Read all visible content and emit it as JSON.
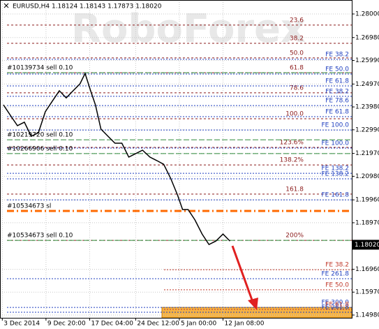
{
  "chart_data": {
    "type": "line",
    "title": "EURUSD,H4  1.18124 1.18143 1.17873 1.18020",
    "watermark": "RoboForex",
    "current_price": {
      "value": 1.1802,
      "label": "1.18020"
    },
    "xlim": [
      0,
      153
    ],
    "xticks": [
      {
        "value": 1,
        "label": "3 Dec 2014"
      },
      {
        "value": 20,
        "label": "9 Dec 20:00"
      },
      {
        "value": 39,
        "label": "17 Dec 04:00"
      },
      {
        "value": 59,
        "label": "24 Dec 12:00"
      },
      {
        "value": 78,
        "label": "5 Jan 00:00"
      },
      {
        "value": 97,
        "label": "12 Jan 08:00"
      }
    ],
    "ylim": [
      1.14859,
      1.28604
    ],
    "yticks": [
      {
        "value": 1.28,
        "label": "1.28000"
      },
      {
        "value": 1.2698,
        "label": "1.26980"
      },
      {
        "value": 1.2599,
        "label": "1.25990"
      },
      {
        "value": 1.2497,
        "label": "1.24970"
      },
      {
        "value": 1.2398,
        "label": "1.23980"
      },
      {
        "value": 1.2299,
        "label": "1.22990"
      },
      {
        "value": 1.2197,
        "label": "1.21970"
      },
      {
        "value": 1.2098,
        "label": "1.20980"
      },
      {
        "value": 1.1996,
        "label": "1.19960"
      },
      {
        "value": 1.1897,
        "label": "1.18970"
      },
      {
        "value": 1.1696,
        "label": "1.16960"
      },
      {
        "value": 1.1597,
        "label": "1.15970"
      },
      {
        "value": 1.1498,
        "label": "1.14980"
      }
    ],
    "grid": true,
    "series": [
      {
        "name": "EURUSD",
        "color": "#000000",
        "x": [
          1.5,
          4.5,
          7.6,
          10.6,
          13.6,
          16.7,
          19.7,
          22.7,
          25.8,
          28.8,
          31.8,
          34.8,
          37,
          39.4,
          41.5,
          43.9,
          47,
          50,
          53,
          56,
          59,
          62,
          65.2,
          68.2,
          71.2,
          74.2,
          77.3,
          79.4,
          81.8,
          84.8,
          87.9,
          90.9,
          93.9,
          97,
          100
        ],
        "values": [
          1.2407,
          1.2362,
          1.2317,
          1.2332,
          1.2271,
          1.2286,
          1.2377,
          1.2422,
          1.2468,
          1.2437,
          1.2468,
          1.2498,
          1.2543,
          1.2468,
          1.2407,
          1.2302,
          1.2271,
          1.2241,
          1.2241,
          1.2181,
          1.2196,
          1.2211,
          1.2181,
          1.2166,
          1.215,
          1.209,
          1.2015,
          1.1954,
          1.1954,
          1.1909,
          1.1848,
          1.1803,
          1.1818,
          1.1848,
          1.1818
        ]
      }
    ],
    "fibo_levels": {
      "color": "#8b1a1a",
      "levels": [
        {
          "label": "23.6",
          "value": 1.2752
        },
        {
          "label": "38.2",
          "value": 1.2673
        },
        {
          "label": "50.0",
          "value": 1.261
        },
        {
          "label": "61.8",
          "value": 1.2546
        },
        {
          "label": "78.6",
          "value": 1.2459
        },
        {
          "label": "100.0",
          "value": 1.2347
        },
        {
          "label": "123.6%",
          "value": 1.2223
        },
        {
          "label": "138.2%",
          "value": 1.2147
        },
        {
          "label": "161.8",
          "value": 1.2021
        },
        {
          "label": "200%",
          "value": 1.1821
        }
      ]
    },
    "fe_levels": {
      "color": "#1f3fbf",
      "levels": [
        {
          "label": "FE 38.2",
          "value": 1.2604
        },
        {
          "label": "FE 50.0",
          "value": 1.254
        },
        {
          "label": "FE 61.8",
          "value": 1.2489
        },
        {
          "label": "FE 38.2",
          "value": 1.2444
        },
        {
          "label": "FE 78.6",
          "value": 1.2404
        },
        {
          "label": "FE 61.8",
          "value": 1.2356
        },
        {
          "label": "FE 100.0",
          "value": 1.2298
        },
        {
          "label": "FE 100.0",
          "value": 1.222
        },
        {
          "label": "FE 138.2",
          "value": 1.2111
        },
        {
          "label": "FE 138.2",
          "value": 1.2087
        },
        {
          "label": "FE 161.8",
          "value": 1.1996
        },
        {
          "label": "FE 261.8",
          "value": 1.1655
        },
        {
          "label": "FE 300.0",
          "value": 1.1531
        },
        {
          "label": "FE 261.8",
          "value": 1.151
        }
      ]
    },
    "fe_target_levels": {
      "color": "#c0392b",
      "levels": [
        {
          "label": "FE 38.2",
          "value": 1.1694
        },
        {
          "label": "FE 50.0",
          "value": 1.1607
        },
        {
          "label": "FE 61.8",
          "value": 1.1522
        }
      ]
    },
    "orders": {
      "color": "#2e8b3a",
      "levels": [
        {
          "label": "#10139734 sell 0.10",
          "value": 1.2546
        },
        {
          "label": "#10219720 sell 0.10",
          "value": 1.2256
        },
        {
          "label": "#10266906 sell 0.10",
          "value": 1.2196
        },
        {
          "label": "#10534673 sl",
          "value": 1.1948
        },
        {
          "label": "#10534673 sell 0.10",
          "value": 1.1821
        }
      ]
    },
    "target_zone": {
      "color": "#f5a623",
      "values": [
        1.1531,
        1.14859
      ]
    }
  }
}
